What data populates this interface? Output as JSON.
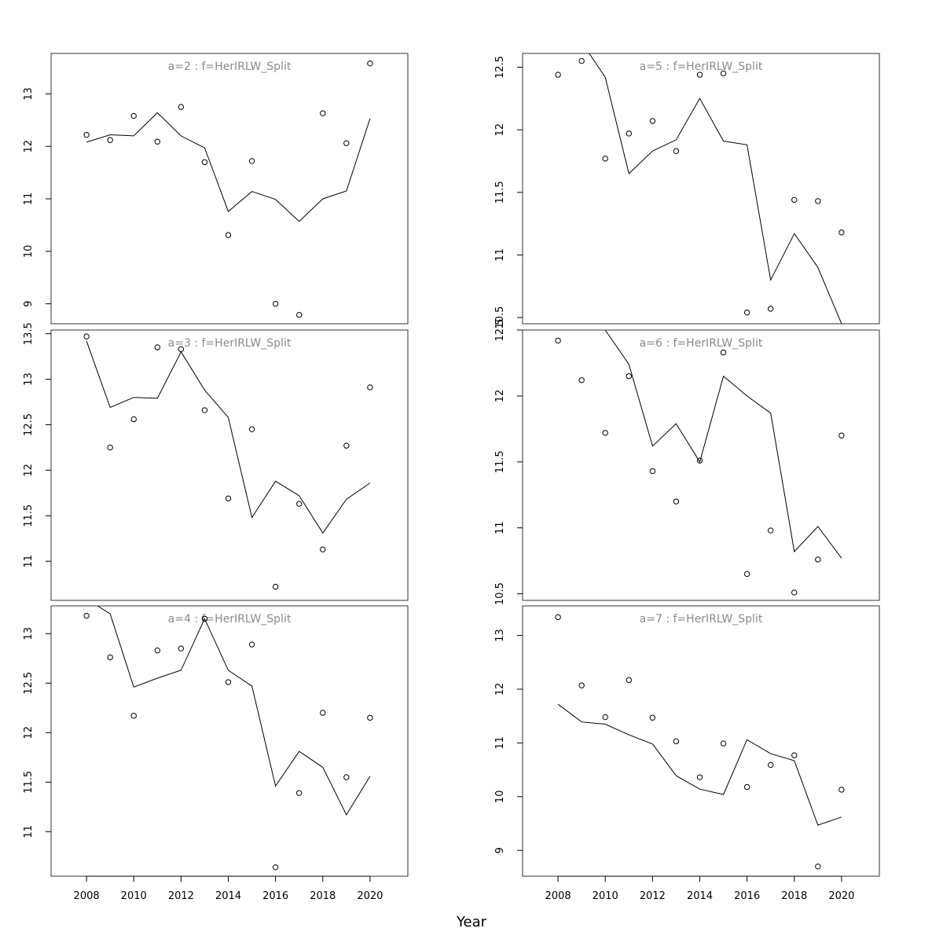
{
  "figure": {
    "xlabel": "Year"
  },
  "chart_data": [
    {
      "type": "scatter+line",
      "title": "a=2 : f=HerIRLW_Split",
      "x": [
        2008,
        2009,
        2010,
        2011,
        2012,
        2013,
        2014,
        2015,
        2016,
        2017,
        2018,
        2019,
        2020
      ],
      "observed": [
        12.22,
        12.12,
        12.58,
        12.09,
        12.75,
        11.7,
        10.31,
        11.72,
        9.0,
        8.79,
        12.63,
        12.06,
        13.58
      ],
      "fitted": [
        12.08,
        12.22,
        12.2,
        12.64,
        12.2,
        11.97,
        10.76,
        11.14,
        10.99,
        10.57,
        11.0,
        11.15,
        12.53
      ],
      "ylim": [
        8.62,
        13.77
      ],
      "yticks": [
        9,
        10,
        11,
        12,
        13
      ],
      "xlim": [
        2006.5,
        2021.6
      ]
    },
    {
      "type": "scatter+line",
      "title": "a=3 : f=HerIRLW_Split",
      "x": [
        2008,
        2009,
        2010,
        2011,
        2012,
        2013,
        2014,
        2015,
        2016,
        2017,
        2018,
        2019,
        2020
      ],
      "observed": [
        13.47,
        12.25,
        12.56,
        13.35,
        13.33,
        12.66,
        11.69,
        12.45,
        10.72,
        11.63,
        11.13,
        12.27,
        12.91
      ],
      "fitted": [
        13.42,
        12.69,
        12.8,
        12.79,
        13.3,
        12.88,
        12.58,
        11.48,
        11.88,
        11.72,
        11.31,
        11.68,
        11.86
      ],
      "ylim": [
        10.57,
        13.54
      ],
      "yticks": [
        11.0,
        11.5,
        12.0,
        12.5,
        13.0,
        13.5
      ],
      "xlim": [
        2006.5,
        2021.6
      ]
    },
    {
      "type": "scatter+line",
      "title": "a=4 : f=HerIRLW_Split",
      "x": [
        2008,
        2009,
        2010,
        2011,
        2012,
        2013,
        2014,
        2015,
        2016,
        2017,
        2018,
        2019,
        2020
      ],
      "observed": [
        13.18,
        12.76,
        12.17,
        12.83,
        12.85,
        13.15,
        12.51,
        12.89,
        10.64,
        11.39,
        12.2,
        11.55,
        12.15
      ],
      "fitted": [
        13.35,
        13.2,
        12.46,
        12.55,
        12.63,
        13.15,
        12.63,
        12.47,
        11.46,
        11.81,
        11.65,
        11.17,
        11.56
      ],
      "ylim": [
        10.55,
        13.28
      ],
      "yticks": [
        11.0,
        11.5,
        12.0,
        12.5,
        13.0
      ],
      "xlim": [
        2006.5,
        2021.6
      ]
    },
    {
      "type": "scatter+line",
      "title": "a=5 : f=HerIRLW_Split",
      "x": [
        2008,
        2009,
        2010,
        2011,
        2012,
        2013,
        2014,
        2015,
        2016,
        2017,
        2018,
        2019,
        2020
      ],
      "observed": [
        12.44,
        12.55,
        11.77,
        11.97,
        12.07,
        11.83,
        12.44,
        12.45,
        10.54,
        10.57,
        11.44,
        11.43,
        11.18
      ],
      "fitted": [
        12.7,
        12.7,
        12.42,
        11.65,
        11.83,
        11.92,
        12.25,
        11.91,
        11.88,
        10.8,
        11.17,
        10.9,
        10.45
      ],
      "ylim": [
        10.45,
        12.61
      ],
      "yticks": [
        10.5,
        11.0,
        11.5,
        12.0,
        12.5
      ],
      "xlim": [
        2006.5,
        2021.6
      ]
    },
    {
      "type": "scatter+line",
      "title": "a=6 : f=HerIRLW_Split",
      "x": [
        2008,
        2009,
        2010,
        2011,
        2012,
        2013,
        2014,
        2015,
        2016,
        2017,
        2018,
        2019,
        2020
      ],
      "observed": [
        12.42,
        12.12,
        11.72,
        12.15,
        11.43,
        11.2,
        11.51,
        12.33,
        10.65,
        10.98,
        10.51,
        10.76,
        11.7
      ],
      "fitted": [
        12.7,
        12.7,
        12.5,
        12.24,
        11.62,
        11.79,
        11.5,
        12.15,
        12.0,
        11.87,
        10.82,
        11.01,
        10.77
      ],
      "ylim": [
        10.45,
        12.5
      ],
      "yticks": [
        10.5,
        11.0,
        11.5,
        12.0,
        12.5
      ],
      "xlim": [
        2006.5,
        2021.6
      ]
    },
    {
      "type": "scatter+line",
      "title": "a=7 : f=HerIRLW_Split",
      "x": [
        2008,
        2009,
        2010,
        2011,
        2012,
        2013,
        2014,
        2015,
        2016,
        2017,
        2018,
        2019,
        2020
      ],
      "observed": [
        13.34,
        12.07,
        11.48,
        12.17,
        11.47,
        11.03,
        10.36,
        10.99,
        10.18,
        10.59,
        10.77,
        8.7,
        10.13
      ],
      "fitted": [
        11.72,
        11.39,
        11.35,
        11.15,
        10.98,
        10.39,
        10.14,
        10.04,
        11.06,
        10.8,
        10.67,
        9.47,
        9.62
      ],
      "ylim": [
        8.52,
        13.55
      ],
      "yticks": [
        9,
        10,
        11,
        12,
        13
      ],
      "xlim": [
        2006.5,
        2021.6
      ]
    }
  ],
  "xticks": [
    2008,
    2010,
    2012,
    2014,
    2016,
    2018,
    2020
  ]
}
